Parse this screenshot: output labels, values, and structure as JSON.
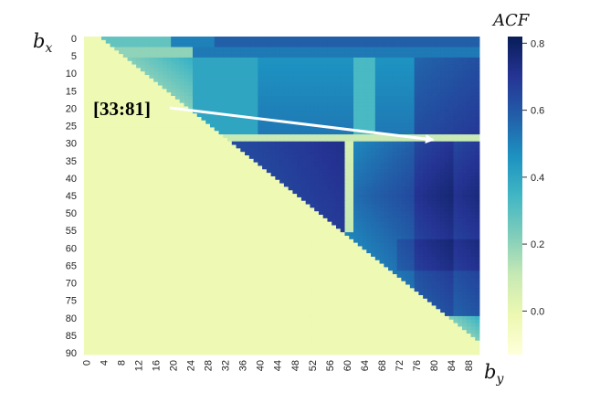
{
  "chart_data": {
    "type": "heatmap",
    "title": "",
    "xlabel_base": "b",
    "xlabel_sub": "y",
    "ylabel_base": "b",
    "ylabel_sub": "x",
    "n": 91,
    "x_ticks": [
      "0",
      "4",
      "8",
      "12",
      "16",
      "20",
      "24",
      "28",
      "32",
      "36",
      "40",
      "44",
      "48",
      "52",
      "56",
      "60",
      "64",
      "68",
      "72",
      "76",
      "80",
      "84",
      "88"
    ],
    "y_ticks": [
      "0",
      "5",
      "10",
      "15",
      "20",
      "25",
      "30",
      "35",
      "40",
      "45",
      "50",
      "55",
      "60",
      "65",
      "70",
      "75",
      "80",
      "85",
      "90"
    ],
    "colorbar": {
      "title": "ACF",
      "range": [
        -0.13,
        0.82
      ],
      "ticks": [
        "0.8",
        "0.6",
        "0.4",
        "0.2",
        "0.0"
      ],
      "tick_values": [
        0.8,
        0.6,
        0.4,
        0.2,
        0.0
      ],
      "colormap": "YlGnBu"
    },
    "mask": "cells with b_y <= b_x are masked (lower triangle shown in base color)",
    "blocks": [
      {
        "name": "dark block near diagonal",
        "x_range": [
          33,
          60
        ],
        "y_range": [
          30,
          50
        ],
        "acf": 0.7
      },
      {
        "name": "dark block right",
        "x_range": [
          62,
          91
        ],
        "y_range": [
          30,
          72
        ],
        "acf": 0.72
      },
      {
        "name": "peak region",
        "x_range": [
          76,
          84
        ],
        "y_range": [
          33,
          62
        ],
        "acf": 0.8
      },
      {
        "name": "light band",
        "x_range": [
          60,
          62
        ],
        "y_range": [
          30,
          55
        ],
        "acf": 0.05
      },
      {
        "name": "upper strip",
        "x_range": [
          12,
          91
        ],
        "y_range": [
          0,
          28
        ],
        "acf": 0.45
      }
    ],
    "annotation": {
      "text": "[33:81]",
      "points_to": {
        "b_x": 33,
        "b_y": 81
      }
    }
  }
}
